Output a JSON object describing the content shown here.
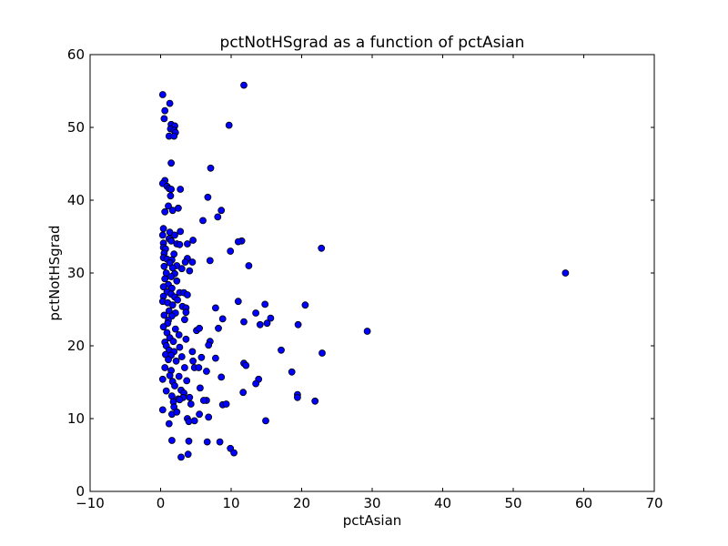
{
  "chart_data": {
    "type": "scatter",
    "title": "pctNotHSgrad as a function of pctAsian",
    "xlabel": "pctAsian",
    "ylabel": "pctNotHSgrad",
    "xlim": [
      -10,
      70
    ],
    "ylim": [
      0,
      60
    ],
    "xticks": [
      "−10",
      "0",
      "10",
      "20",
      "30",
      "40",
      "50",
      "60",
      "70"
    ],
    "yticks": [
      "0",
      "10",
      "20",
      "30",
      "40",
      "50",
      "60"
    ],
    "grid": false,
    "legend": "none",
    "marker_color": "#0000ff",
    "marker_edge_color": "#000000",
    "points": [
      [
        0.3,
        54.5
      ],
      [
        1.3,
        53.3
      ],
      [
        0.6,
        52.3
      ],
      [
        0.5,
        51.2
      ],
      [
        11.8,
        55.8
      ],
      [
        9.7,
        50.3
      ],
      [
        1.5,
        50.4
      ],
      [
        2.0,
        50.2
      ],
      [
        1.4,
        49.8
      ],
      [
        1.9,
        49.6
      ],
      [
        2.1,
        49.3
      ],
      [
        1.2,
        48.8
      ],
      [
        1.9,
        48.8
      ],
      [
        1.5,
        45.1
      ],
      [
        7.1,
        44.4
      ],
      [
        0.6,
        42.7
      ],
      [
        0.3,
        42.3
      ],
      [
        0.9,
        41.9
      ],
      [
        1.2,
        41.6
      ],
      [
        1.5,
        41.5
      ],
      [
        2.8,
        41.5
      ],
      [
        1.4,
        40.6
      ],
      [
        6.7,
        40.4
      ],
      [
        1.1,
        39.2
      ],
      [
        2.5,
        38.9
      ],
      [
        8.6,
        38.6
      ],
      [
        0.6,
        38.4
      ],
      [
        1.7,
        38.6
      ],
      [
        8.1,
        37.7
      ],
      [
        6.0,
        37.2
      ],
      [
        0.4,
        36.1
      ],
      [
        1.3,
        35.6
      ],
      [
        2.8,
        35.7
      ],
      [
        0.3,
        35.2
      ],
      [
        2.0,
        35.2
      ],
      [
        1.2,
        34.7
      ],
      [
        4.6,
        34.5
      ],
      [
        1.5,
        34.4
      ],
      [
        11.5,
        34.4
      ],
      [
        0.4,
        34.1
      ],
      [
        2.3,
        34.0
      ],
      [
        2.7,
        33.9
      ],
      [
        3.8,
        34.0
      ],
      [
        11.0,
        34.3
      ],
      [
        0.4,
        33.5
      ],
      [
        0.7,
        33.3
      ],
      [
        22.8,
        33.4
      ],
      [
        9.9,
        33.0
      ],
      [
        0.5,
        32.7
      ],
      [
        1.9,
        32.6
      ],
      [
        0.4,
        32.1
      ],
      [
        3.8,
        32.0
      ],
      [
        0.9,
        31.9
      ],
      [
        1.6,
        31.8
      ],
      [
        7.0,
        31.7
      ],
      [
        3.5,
        31.5
      ],
      [
        1.3,
        31.4
      ],
      [
        4.5,
        31.5
      ],
      [
        2.3,
        31.0
      ],
      [
        12.5,
        31.0
      ],
      [
        0.5,
        30.9
      ],
      [
        1.7,
        30.7
      ],
      [
        3.0,
        30.6
      ],
      [
        4.1,
        30.3
      ],
      [
        57.4,
        30.0
      ],
      [
        0.8,
        30.0
      ],
      [
        2.0,
        29.9
      ],
      [
        1.5,
        29.5
      ],
      [
        0.6,
        29.2
      ],
      [
        2.3,
        28.9
      ],
      [
        1.1,
        28.4
      ],
      [
        0.4,
        28.1
      ],
      [
        1.6,
        27.9
      ],
      [
        0.9,
        27.4
      ],
      [
        2.7,
        27.3
      ],
      [
        1.5,
        27.1
      ],
      [
        3.3,
        27.3
      ],
      [
        3.8,
        27.0
      ],
      [
        0.4,
        26.8
      ],
      [
        2.0,
        26.7
      ],
      [
        0.3,
        26.1
      ],
      [
        2.4,
        26.3
      ],
      [
        11.0,
        26.1
      ],
      [
        1.0,
        25.9
      ],
      [
        1.7,
        25.6
      ],
      [
        14.8,
        25.7
      ],
      [
        20.5,
        25.6
      ],
      [
        3.1,
        25.4
      ],
      [
        3.6,
        25.2
      ],
      [
        7.8,
        25.2
      ],
      [
        1.2,
        24.8
      ],
      [
        2.1,
        24.5
      ],
      [
        3.6,
        24.6
      ],
      [
        13.5,
        24.5
      ],
      [
        0.5,
        24.2
      ],
      [
        1.6,
        24.1
      ],
      [
        8.8,
        23.7
      ],
      [
        15.6,
        23.8
      ],
      [
        1.1,
        23.5
      ],
      [
        3.4,
        23.6
      ],
      [
        11.8,
        23.3
      ],
      [
        1.0,
        23.1
      ],
      [
        14.1,
        22.9
      ],
      [
        15.1,
        23.1
      ],
      [
        19.5,
        22.9
      ],
      [
        0.4,
        22.6
      ],
      [
        2.1,
        22.3
      ],
      [
        5.1,
        22.1
      ],
      [
        5.5,
        22.4
      ],
      [
        8.2,
        22.4
      ],
      [
        29.3,
        22.0
      ],
      [
        0.9,
        21.8
      ],
      [
        2.6,
        21.5
      ],
      [
        1.3,
        21.1
      ],
      [
        3.6,
        20.9
      ],
      [
        0.6,
        20.5
      ],
      [
        1.8,
        20.6
      ],
      [
        7.0,
        20.6
      ],
      [
        0.8,
        20.0
      ],
      [
        2.7,
        19.8
      ],
      [
        6.8,
        20.1
      ],
      [
        1.2,
        19.4
      ],
      [
        1.9,
        19.2
      ],
      [
        4.5,
        19.2
      ],
      [
        17.1,
        19.4
      ],
      [
        22.9,
        19.0
      ],
      [
        0.7,
        18.8
      ],
      [
        1.5,
        18.7
      ],
      [
        3.0,
        18.5
      ],
      [
        5.8,
        18.4
      ],
      [
        7.8,
        18.3
      ],
      [
        1.1,
        18.1
      ],
      [
        2.2,
        17.9
      ],
      [
        4.6,
        17.9
      ],
      [
        11.8,
        17.6
      ],
      [
        0.6,
        17.0
      ],
      [
        1.5,
        16.6
      ],
      [
        3.4,
        17.0
      ],
      [
        4.8,
        17.0
      ],
      [
        5.4,
        17.0
      ],
      [
        12.1,
        17.3
      ],
      [
        6.5,
        16.5
      ],
      [
        18.6,
        16.4
      ],
      [
        1.3,
        15.9
      ],
      [
        2.6,
        15.8
      ],
      [
        8.6,
        15.7
      ],
      [
        0.3,
        15.4
      ],
      [
        1.7,
        15.1
      ],
      [
        3.7,
        15.2
      ],
      [
        13.9,
        15.4
      ],
      [
        2.0,
        14.5
      ],
      [
        13.5,
        14.8
      ],
      [
        5.6,
        14.2
      ],
      [
        2.9,
        13.9
      ],
      [
        3.3,
        13.5
      ],
      [
        0.8,
        13.8
      ],
      [
        11.7,
        13.6
      ],
      [
        1.6,
        13.1
      ],
      [
        2.5,
        12.7
      ],
      [
        3.2,
        12.9
      ],
      [
        4.1,
        12.9
      ],
      [
        6.5,
        12.5
      ],
      [
        19.4,
        13.3
      ],
      [
        1.8,
        12.3
      ],
      [
        2.7,
        12.6
      ],
      [
        4.3,
        12.0
      ],
      [
        6.1,
        12.5
      ],
      [
        21.9,
        12.4
      ],
      [
        1.9,
        11.6
      ],
      [
        8.8,
        11.9
      ],
      [
        9.3,
        12.0
      ],
      [
        19.4,
        12.9
      ],
      [
        0.3,
        11.2
      ],
      [
        1.6,
        10.6
      ],
      [
        2.3,
        10.9
      ],
      [
        5.5,
        10.6
      ],
      [
        3.8,
        10.0
      ],
      [
        6.8,
        10.2
      ],
      [
        4.0,
        9.6
      ],
      [
        4.8,
        9.7
      ],
      [
        14.9,
        9.7
      ],
      [
        1.2,
        9.3
      ],
      [
        1.6,
        7.0
      ],
      [
        4.0,
        6.9
      ],
      [
        6.6,
        6.8
      ],
      [
        8.4,
        6.8
      ],
      [
        9.9,
        5.9
      ],
      [
        10.4,
        5.3
      ],
      [
        3.9,
        5.1
      ],
      [
        2.9,
        4.7
      ]
    ]
  }
}
